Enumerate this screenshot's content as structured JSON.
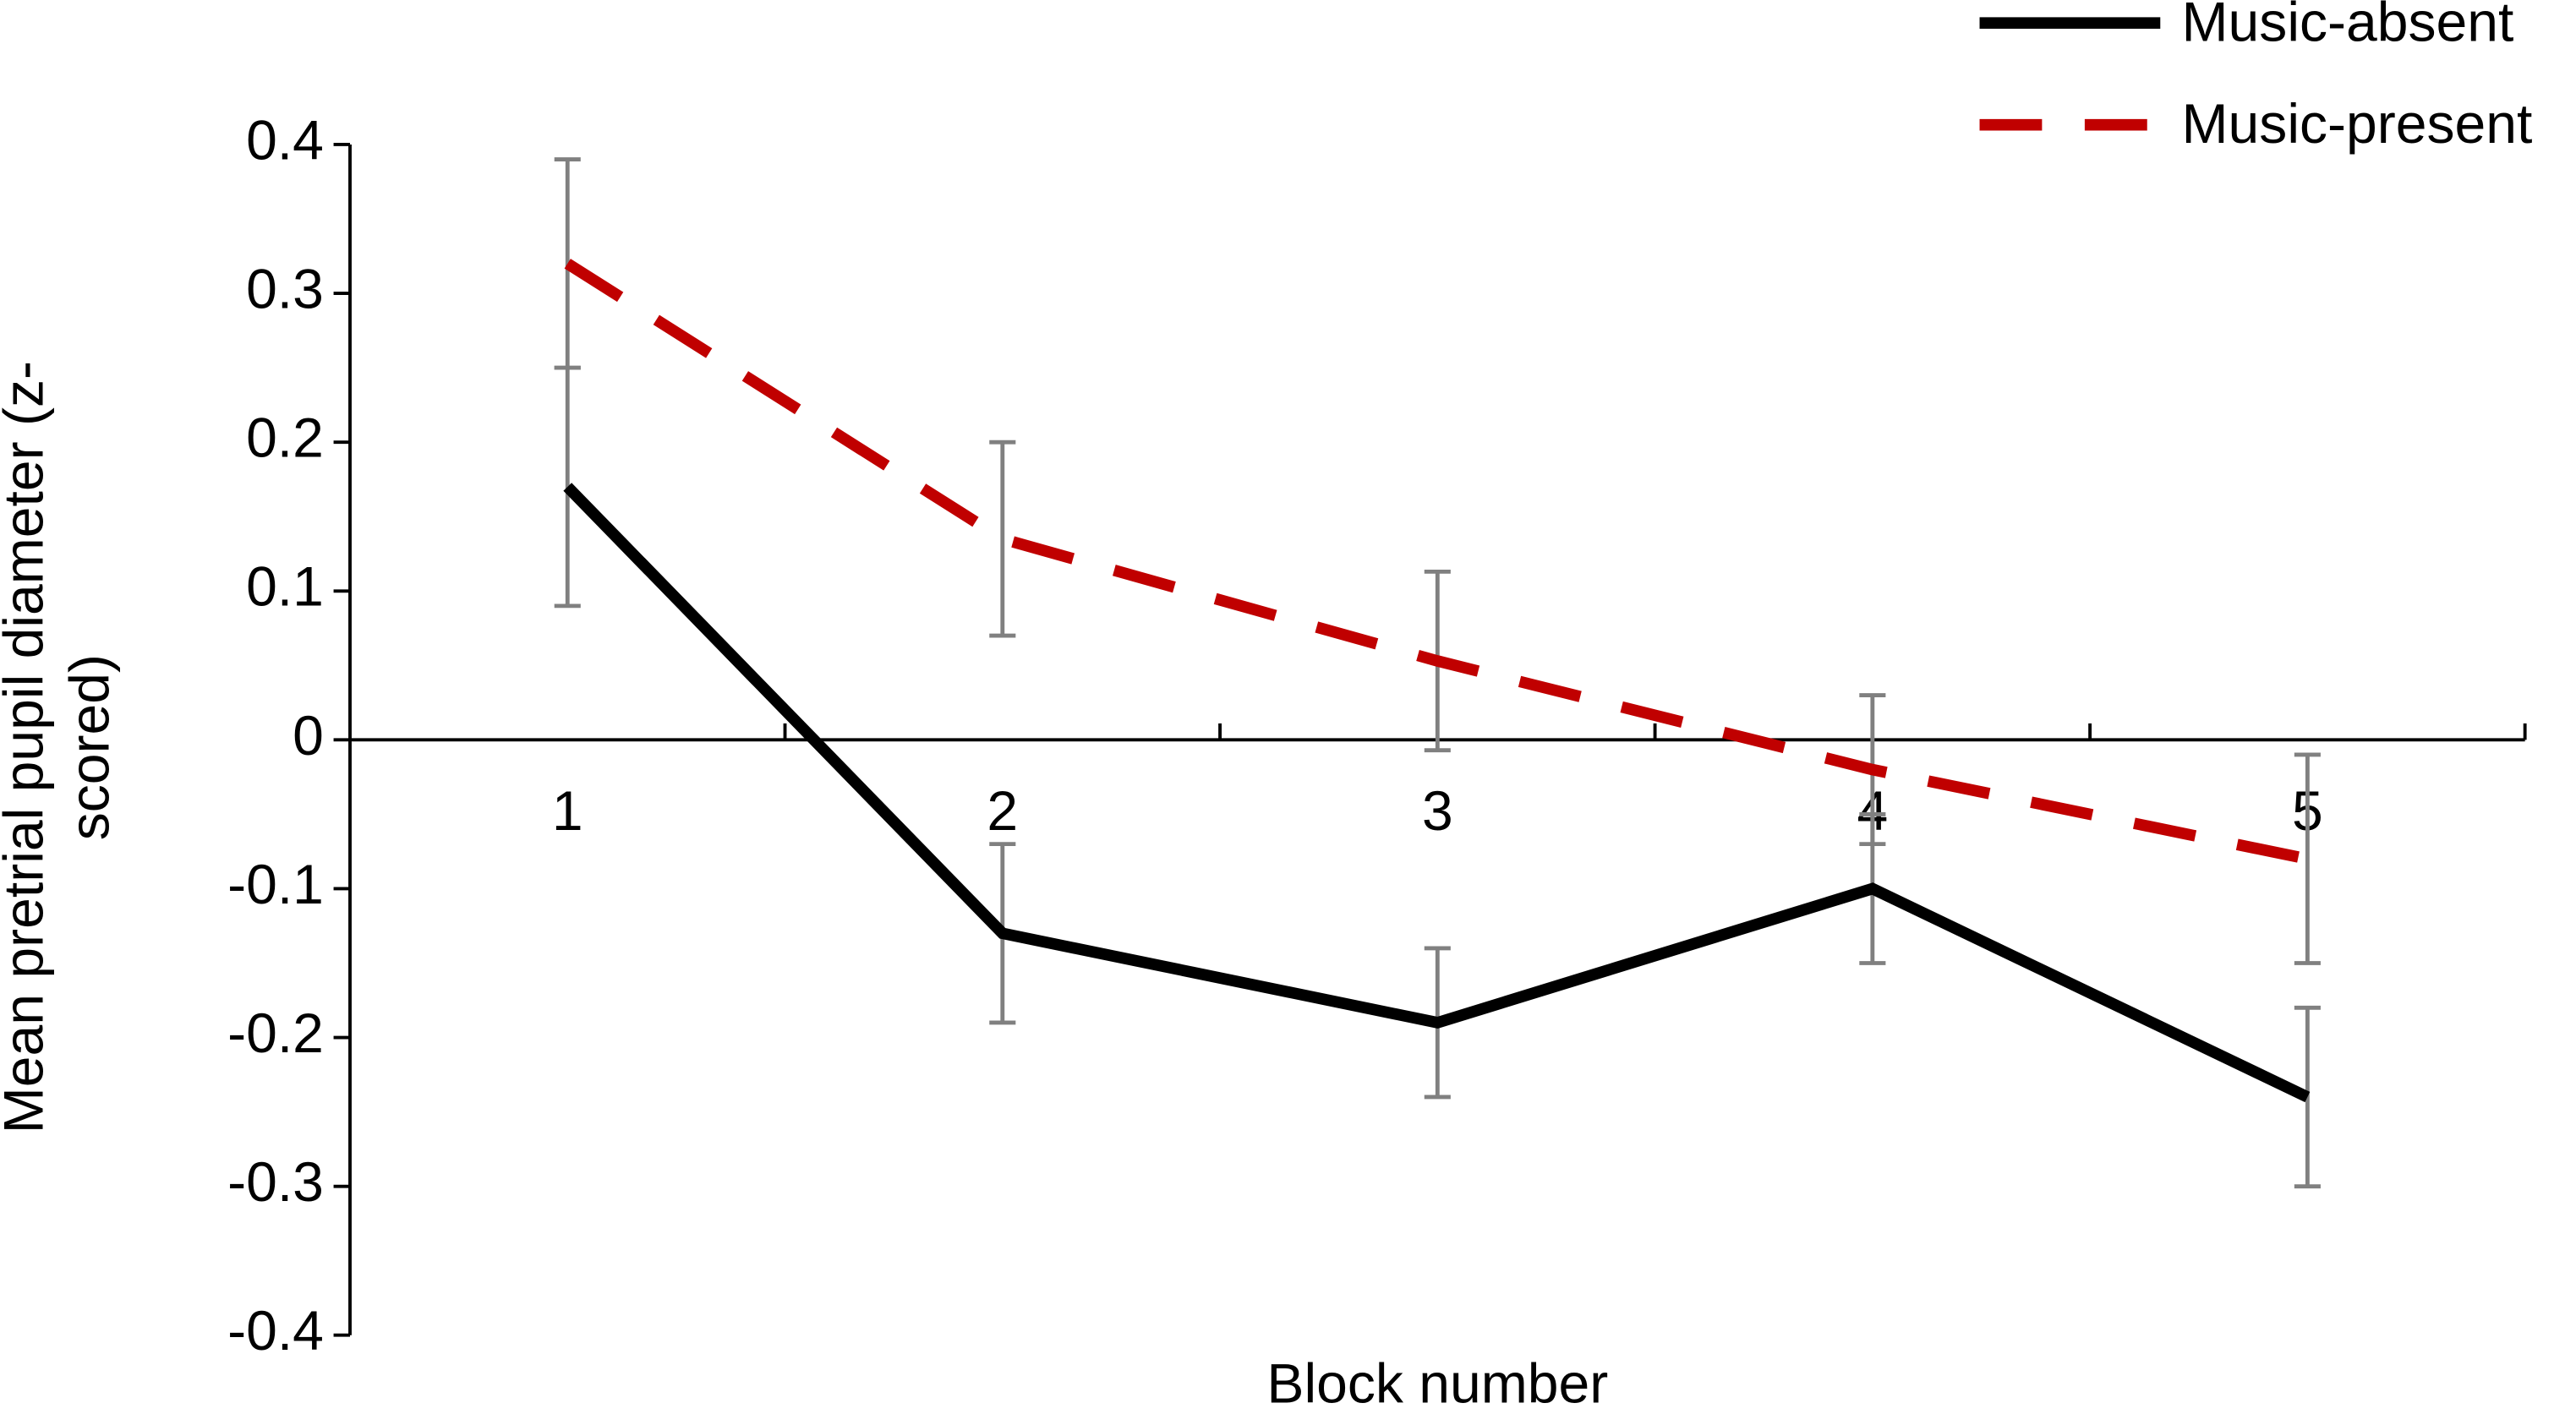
{
  "chart_data": {
    "type": "line",
    "x_label": "Block number",
    "y_label": "Mean pretrial pupil diameter (z-scored)",
    "categories": [
      "1",
      "2",
      "3",
      "4",
      "5"
    ],
    "series": [
      {
        "name": "Music-absent",
        "color": "#000000",
        "dash": false,
        "values": [
          0.17,
          -0.13,
          -0.19,
          -0.1,
          -0.24
        ],
        "errors": [
          0.08,
          0.06,
          0.05,
          0.05,
          0.06
        ]
      },
      {
        "name": "Music-present",
        "color": "#c00000",
        "dash": true,
        "values": [
          0.32,
          0.135,
          0.053,
          -0.02,
          -0.08
        ],
        "errors": [
          0.07,
          0.065,
          0.06,
          0.05,
          0.07
        ]
      }
    ],
    "error_color": "#808080",
    "ylim": [
      -0.4,
      0.4
    ],
    "yticks": [
      -0.4,
      -0.3,
      -0.2,
      -0.1,
      0,
      0.1,
      0.2,
      0.3,
      0.4
    ],
    "legend": "top-right",
    "grid": false
  }
}
